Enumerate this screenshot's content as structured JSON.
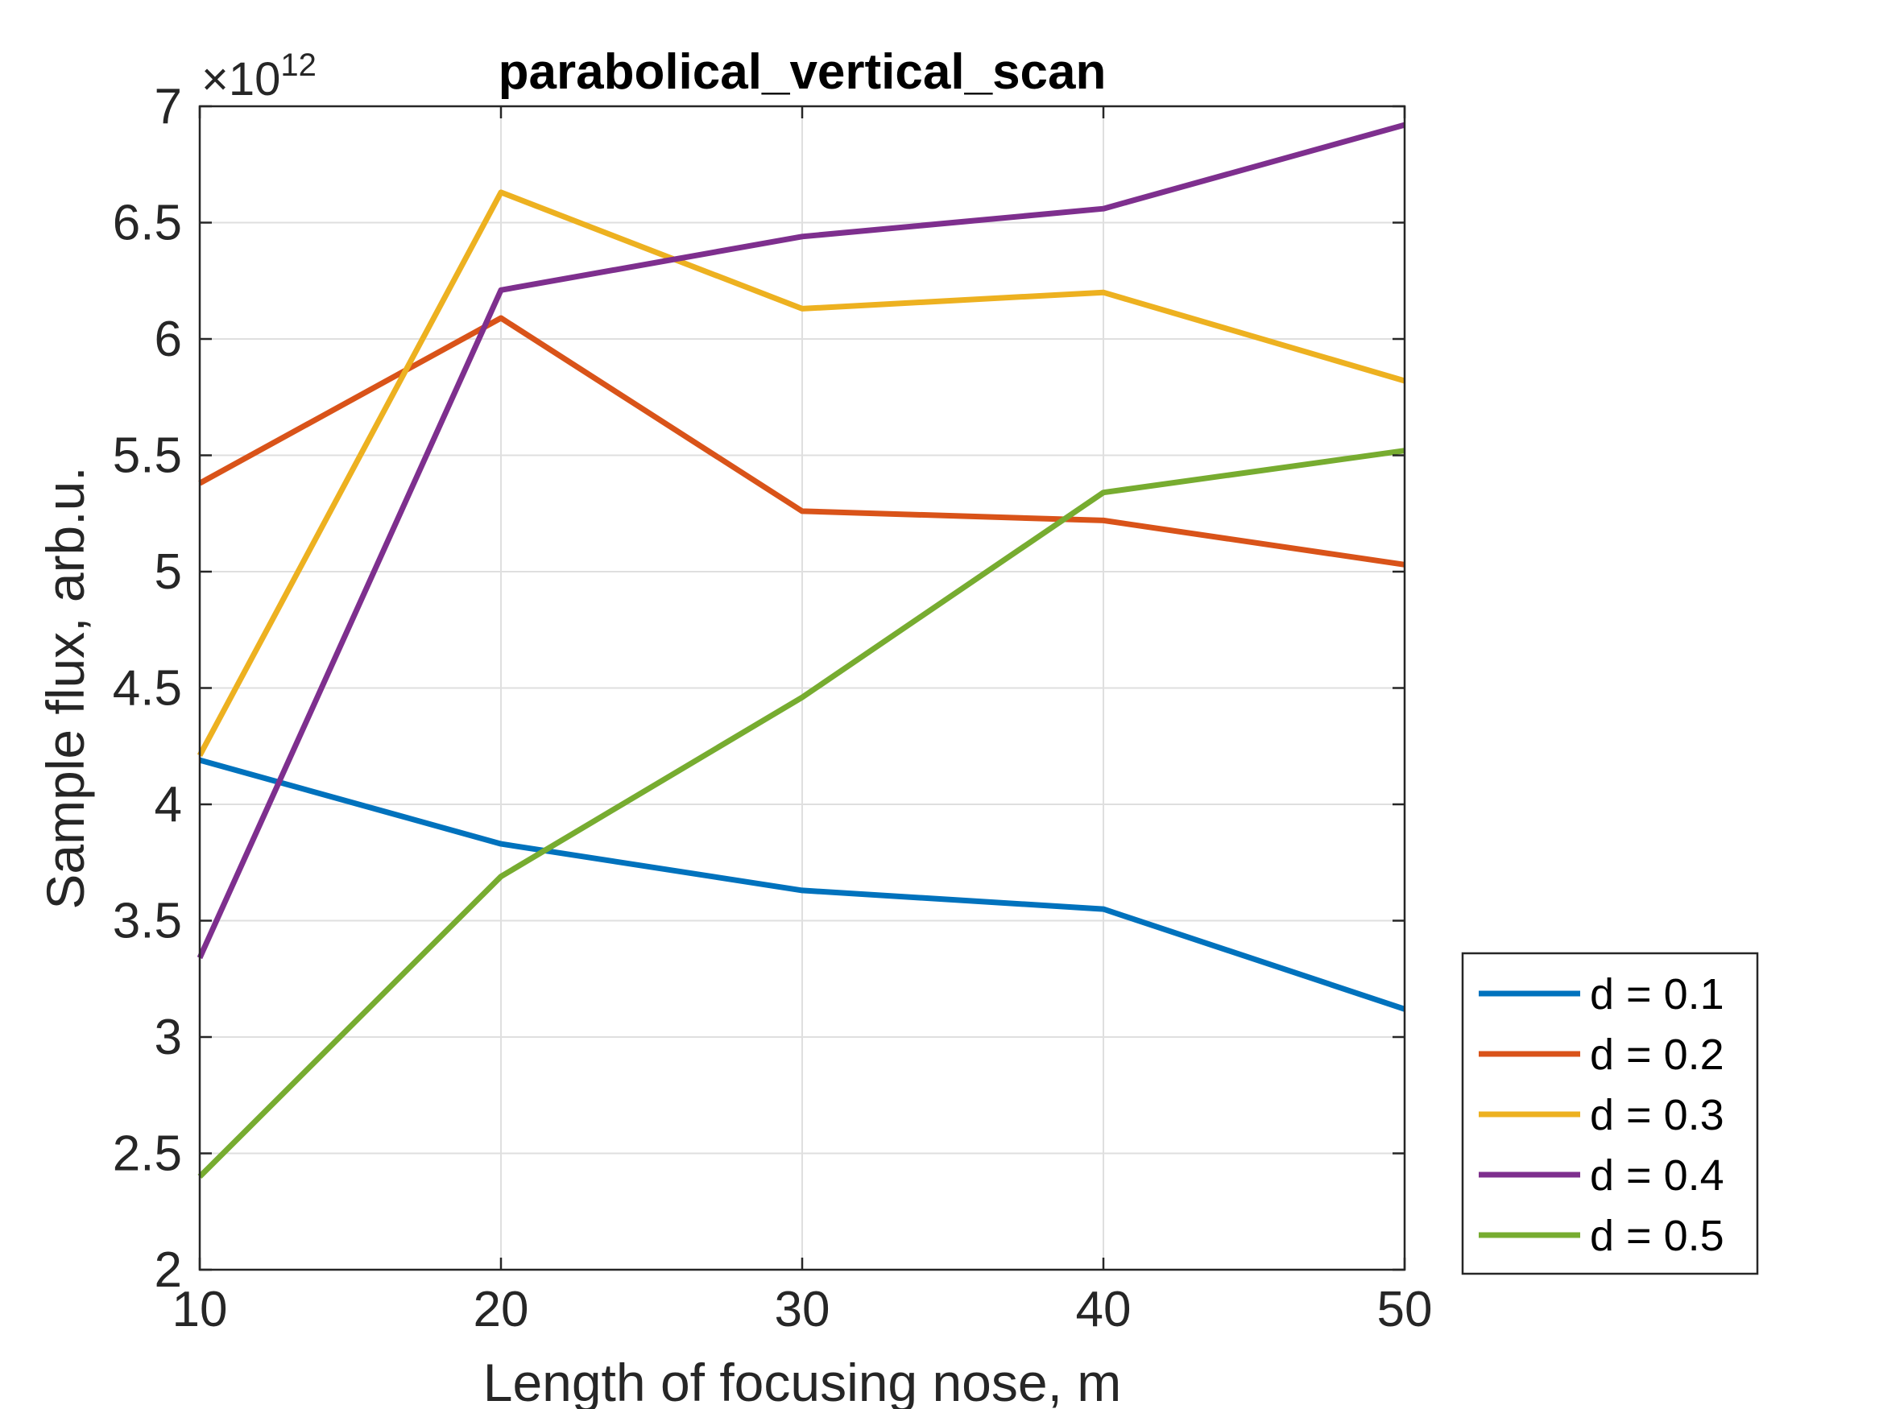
{
  "chart_data": {
    "type": "line",
    "title": "parabolical_vertical_scan",
    "xlabel": "Length of focusing nose, m",
    "ylabel": "Sample flux, arb.u.",
    "y_exponent_base": "×10",
    "y_exponent_power": "12",
    "x": [
      10,
      20,
      30,
      40,
      50
    ],
    "xlim": [
      10,
      50
    ],
    "ylim": [
      2,
      7
    ],
    "x_ticks": [
      10,
      20,
      30,
      40,
      50
    ],
    "x_tick_labels": [
      "10",
      "20",
      "30",
      "40",
      "50"
    ],
    "y_ticks": [
      2,
      2.5,
      3,
      3.5,
      4,
      4.5,
      5,
      5.5,
      6,
      6.5,
      7
    ],
    "y_tick_labels": [
      "2",
      "2.5",
      "3",
      "3.5",
      "4",
      "4.5",
      "5",
      "5.5",
      "6",
      "6.5",
      "7"
    ],
    "grid": true,
    "legend_position": "outside-right-bottom",
    "series": [
      {
        "name": "d = 0.1",
        "color": "#0072BD",
        "values": [
          4.19,
          3.83,
          3.63,
          3.55,
          3.12
        ]
      },
      {
        "name": "d = 0.2",
        "color": "#D95319",
        "values": [
          5.38,
          6.09,
          5.26,
          5.22,
          5.03
        ]
      },
      {
        "name": "d = 0.3",
        "color": "#EDB120",
        "values": [
          4.21,
          6.63,
          6.13,
          6.2,
          5.82
        ]
      },
      {
        "name": "d = 0.4",
        "color": "#7E2F8E",
        "values": [
          3.34,
          6.21,
          6.44,
          6.56,
          6.92
        ]
      },
      {
        "name": "d = 0.5",
        "color": "#77AC30",
        "values": [
          2.4,
          3.69,
          4.46,
          5.34,
          5.52
        ]
      }
    ]
  }
}
